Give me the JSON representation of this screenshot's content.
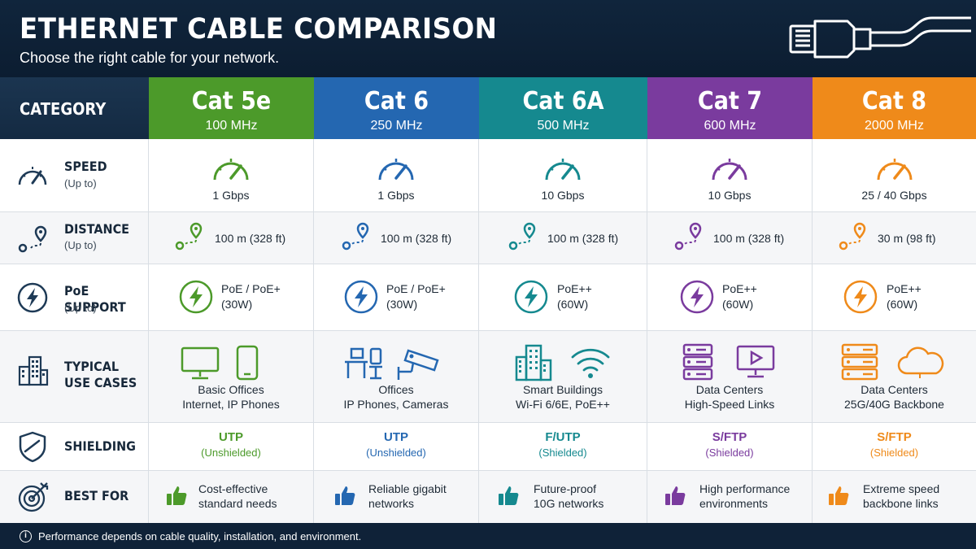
{
  "header": {
    "title": "ETHERNET CABLE COMPARISON",
    "subtitle": "Choose the right cable for your network."
  },
  "corner_label": "CATEGORY",
  "rows": {
    "speed": {
      "label": "SPEED",
      "sub": "(Up to)",
      "icon": "speedometer-icon"
    },
    "distance": {
      "label": "DISTANCE",
      "sub": "(Up to)",
      "icon": "route-pin-icon"
    },
    "poe": {
      "label": "PoE SUPPORT",
      "sub": "(Up to)",
      "icon": "lightning-icon"
    },
    "use": {
      "label1": "TYPICAL",
      "label2": "USE CASES",
      "icon": "buildings-icon"
    },
    "shielding": {
      "label": "SHIELDING",
      "icon": "shield-icon"
    },
    "best": {
      "label": "BEST FOR",
      "icon": "target-icon"
    }
  },
  "cables": [
    {
      "name": "Cat 5e",
      "freq": "100 MHz",
      "color": "#4c9a2a",
      "speed": "1 Gbps",
      "distance": "100 m (328 ft)",
      "poe1": "PoE / PoE+",
      "poe2": "(30W)",
      "use1": "Basic Offices",
      "use2": "Internet, IP Phones",
      "use_icons": [
        "monitor-icon",
        "phone-icon"
      ],
      "shield1": "UTP",
      "shield2": "(Unshielded)",
      "best1": "Cost-effective",
      "best2": "standard needs"
    },
    {
      "name": "Cat 6",
      "freq": "250 MHz",
      "color": "#2467b1",
      "speed": "1 Gbps",
      "distance": "100 m (328 ft)",
      "poe1": "PoE / PoE+",
      "poe2": "(30W)",
      "use1": "Offices",
      "use2": "IP Phones, Cameras",
      "use_icons": [
        "desk-chair-icon",
        "security-camera-icon"
      ],
      "shield1": "UTP",
      "shield2": "(Unshielded)",
      "best1": "Reliable gigabit",
      "best2": "networks"
    },
    {
      "name": "Cat 6A",
      "freq": "500 MHz",
      "color": "#15898f",
      "speed": "10 Gbps",
      "distance": "100 m (328 ft)",
      "poe1": "PoE++",
      "poe2": "(60W)",
      "use1": "Smart Buildings",
      "use2": "Wi-Fi 6/6E, PoE++",
      "use_icons": [
        "building-icon",
        "wifi-icon"
      ],
      "shield1": "F/UTP",
      "shield2": "(Shielded)",
      "best1": "Future-proof",
      "best2": "10G networks"
    },
    {
      "name": "Cat 7",
      "freq": "600 MHz",
      "color": "#7a3b9e",
      "speed": "10 Gbps",
      "distance": "100 m (328 ft)",
      "poe1": "PoE++",
      "poe2": "(60W)",
      "use1": "Data Centers",
      "use2": "High-Speed Links",
      "use_icons": [
        "server-icon",
        "video-monitor-icon"
      ],
      "shield1": "S/FTP",
      "shield2": "(Shielded)",
      "best1": "High performance",
      "best2": "environments"
    },
    {
      "name": "Cat 8",
      "freq": "2000 MHz",
      "color": "#ef8a1a",
      "speed": "25 / 40 Gbps",
      "distance": "30 m (98 ft)",
      "poe1": "PoE++",
      "poe2": "(60W)",
      "use1": "Data Centers",
      "use2": "25G/40G Backbone",
      "use_icons": [
        "server-icon",
        "cloud-icon"
      ],
      "shield1": "S/FTP",
      "shield2": "(Shielded)",
      "best1": "Extreme speed",
      "best2": "backbone links"
    }
  ],
  "footer": {
    "text": "Performance depends on cable quality, installation, and environment."
  }
}
